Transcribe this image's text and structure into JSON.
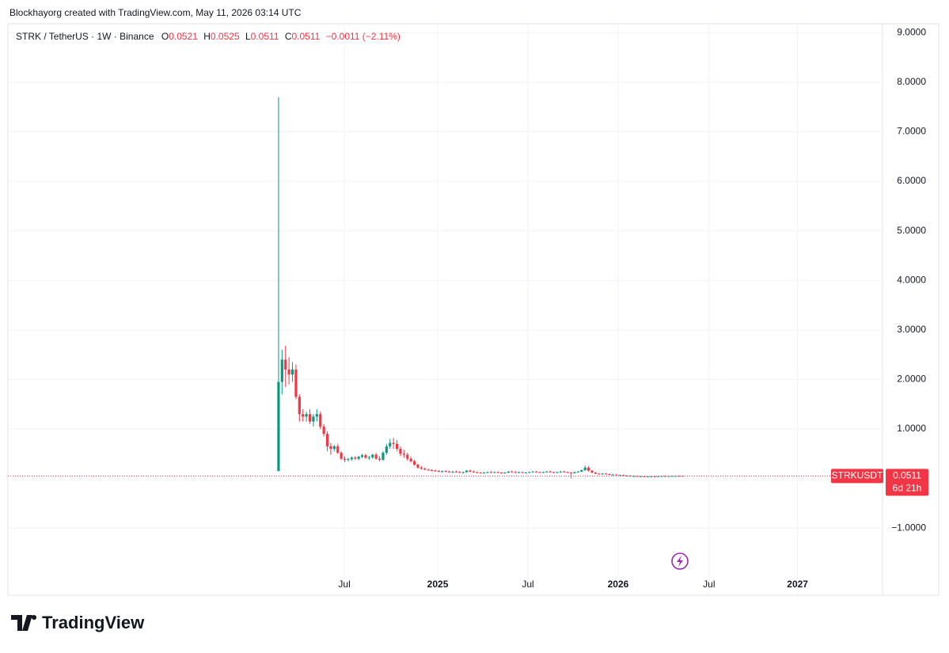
{
  "header": {
    "credit": "Blockhayorg created with TradingView.com, May 11, 2026 03:14 UTC",
    "symbol": "STRK / TetherUS · 1W · Binance",
    "o_label": "O",
    "o_value": "0.0521",
    "h_label": "H",
    "h_value": "0.0525",
    "l_label": "L",
    "l_value": "0.0511",
    "c_label": "C",
    "c_value": "0.0511",
    "change": "−0.0011 (−2.11%)"
  },
  "chart_data": {
    "type": "candlestick",
    "up_color": "#089981",
    "down_color": "#f23645",
    "grid": true,
    "ylim": [
      -2.355,
      9.18
    ],
    "xlim": [
      -77.7,
      173.4
    ],
    "yticks": [
      {
        "value": 9,
        "label": "9.0000"
      },
      {
        "value": 8,
        "label": "8.0000"
      },
      {
        "value": 7,
        "label": "7.0000"
      },
      {
        "value": 6,
        "label": "6.0000"
      },
      {
        "value": 5,
        "label": "5.0000"
      },
      {
        "value": 4,
        "label": "4.0000"
      },
      {
        "value": 3,
        "label": "3.0000"
      },
      {
        "value": 2,
        "label": "2.0000"
      },
      {
        "value": 1,
        "label": "1.0000"
      },
      {
        "value": -1,
        "label": "−1.0000"
      }
    ],
    "xticks": [
      {
        "value": 18.9,
        "label": "Jul"
      },
      {
        "value": 45.7,
        "label": "2025"
      },
      {
        "value": 71.6,
        "label": "Jul"
      },
      {
        "value": 97.5,
        "label": "2026"
      },
      {
        "value": 123.6,
        "label": "Jul"
      },
      {
        "value": 149,
        "label": "2027"
      }
    ],
    "open": [
      0.15,
      1.95,
      2.4,
      2.2,
      2.1,
      2.2,
      1.65,
      1.3,
      1.25,
      1.3,
      1.15,
      1.25,
      1.3,
      1.05,
      0.9,
      0.65,
      0.6,
      0.65,
      0.52,
      0.4,
      0.38,
      0.39,
      0.42,
      0.4,
      0.44,
      0.47,
      0.42,
      0.43,
      0.48,
      0.4,
      0.38,
      0.52,
      0.65,
      0.72,
      0.7,
      0.6,
      0.5,
      0.48,
      0.4,
      0.35,
      0.28,
      0.22,
      0.2,
      0.18,
      0.17,
      0.16,
      0.15,
      0.14,
      0.15,
      0.14,
      0.13,
      0.14,
      0.13,
      0.12,
      0.13,
      0.16,
      0.14,
      0.13,
      0.12,
      0.11,
      0.12,
      0.13,
      0.12,
      0.13,
      0.12,
      0.11,
      0.12,
      0.14,
      0.13,
      0.12,
      0.13,
      0.12,
      0.12,
      0.13,
      0.14,
      0.13,
      0.12,
      0.13,
      0.14,
      0.13,
      0.12,
      0.13,
      0.14,
      0.13,
      0.12,
      0.11,
      0.13,
      0.14,
      0.17,
      0.22,
      0.16,
      0.12,
      0.1,
      0.09,
      0.1,
      0.09,
      0.08,
      0.08,
      0.07,
      0.07,
      0.06,
      0.06,
      0.05,
      0.05,
      0.045,
      0.045,
      0.04,
      0.04,
      0.045,
      0.042,
      0.045,
      0.05,
      0.048,
      0.05,
      0.052,
      0.053,
      0.0521
    ],
    "high": [
      7.7,
      2.6,
      2.68,
      2.45,
      2.35,
      2.3,
      1.7,
      1.4,
      1.35,
      1.4,
      1.3,
      1.4,
      1.35,
      1.1,
      0.95,
      0.72,
      0.68,
      0.7,
      0.55,
      0.45,
      0.42,
      0.45,
      0.45,
      0.46,
      0.5,
      0.5,
      0.46,
      0.5,
      0.52,
      0.45,
      0.55,
      0.7,
      0.8,
      0.82,
      0.78,
      0.65,
      0.58,
      0.52,
      0.44,
      0.38,
      0.3,
      0.25,
      0.22,
      0.2,
      0.19,
      0.18,
      0.17,
      0.16,
      0.17,
      0.16,
      0.15,
      0.16,
      0.15,
      0.14,
      0.17,
      0.18,
      0.16,
      0.14,
      0.13,
      0.13,
      0.14,
      0.15,
      0.14,
      0.14,
      0.13,
      0.13,
      0.15,
      0.16,
      0.15,
      0.14,
      0.14,
      0.13,
      0.14,
      0.15,
      0.15,
      0.14,
      0.14,
      0.15,
      0.16,
      0.14,
      0.14,
      0.15,
      0.16,
      0.14,
      0.13,
      0.14,
      0.15,
      0.18,
      0.26,
      0.25,
      0.17,
      0.13,
      0.11,
      0.11,
      0.11,
      0.1,
      0.09,
      0.09,
      0.08,
      0.08,
      0.07,
      0.07,
      0.06,
      0.055,
      0.05,
      0.05,
      0.045,
      0.05,
      0.05,
      0.048,
      0.052,
      0.055,
      0.053,
      0.056,
      0.058,
      0.056,
      0.0525
    ],
    "low": [
      0.15,
      1.7,
      1.85,
      1.9,
      1.95,
      1.6,
      1.15,
      1.15,
      1.15,
      1.1,
      1.05,
      1.15,
      1.0,
      0.85,
      0.55,
      0.48,
      0.55,
      0.5,
      0.38,
      0.33,
      0.35,
      0.36,
      0.38,
      0.37,
      0.41,
      0.4,
      0.38,
      0.4,
      0.38,
      0.35,
      0.36,
      0.48,
      0.6,
      0.6,
      0.55,
      0.45,
      0.42,
      0.36,
      0.32,
      0.26,
      0.2,
      0.18,
      0.17,
      0.16,
      0.15,
      0.14,
      0.13,
      0.12,
      0.13,
      0.12,
      0.11,
      0.12,
      0.11,
      0.1,
      0.12,
      0.13,
      0.12,
      0.11,
      0.1,
      0.1,
      0.11,
      0.11,
      0.11,
      0.11,
      0.1,
      0.1,
      0.11,
      0.12,
      0.11,
      0.11,
      0.11,
      0.11,
      0.11,
      0.12,
      0.12,
      0.11,
      0.11,
      0.12,
      0.12,
      0.11,
      0.11,
      0.12,
      0.12,
      0.11,
      0.0,
      0.1,
      0.12,
      0.13,
      0.15,
      0.14,
      0.11,
      0.09,
      0.08,
      0.08,
      0.08,
      0.07,
      0.07,
      0.07,
      0.06,
      0.06,
      0.05,
      0.05,
      0.045,
      0.04,
      0.04,
      0.04,
      0.035,
      0.035,
      0.04,
      0.038,
      0.04,
      0.045,
      0.044,
      0.046,
      0.048,
      0.05,
      0.0511
    ],
    "close": [
      1.95,
      2.4,
      2.2,
      2.1,
      2.2,
      1.65,
      1.3,
      1.25,
      1.3,
      1.15,
      1.25,
      1.3,
      1.05,
      0.9,
      0.65,
      0.6,
      0.65,
      0.52,
      0.4,
      0.38,
      0.39,
      0.42,
      0.4,
      0.44,
      0.47,
      0.42,
      0.43,
      0.48,
      0.4,
      0.38,
      0.52,
      0.65,
      0.72,
      0.7,
      0.6,
      0.5,
      0.48,
      0.4,
      0.35,
      0.28,
      0.22,
      0.2,
      0.18,
      0.17,
      0.16,
      0.15,
      0.14,
      0.15,
      0.14,
      0.13,
      0.14,
      0.13,
      0.12,
      0.13,
      0.16,
      0.14,
      0.13,
      0.12,
      0.11,
      0.12,
      0.13,
      0.12,
      0.13,
      0.12,
      0.11,
      0.12,
      0.14,
      0.13,
      0.12,
      0.13,
      0.12,
      0.12,
      0.13,
      0.14,
      0.13,
      0.12,
      0.13,
      0.14,
      0.13,
      0.12,
      0.13,
      0.14,
      0.13,
      0.12,
      0.11,
      0.13,
      0.14,
      0.17,
      0.22,
      0.16,
      0.12,
      0.1,
      0.09,
      0.1,
      0.09,
      0.08,
      0.08,
      0.07,
      0.07,
      0.06,
      0.06,
      0.05,
      0.05,
      0.045,
      0.045,
      0.04,
      0.04,
      0.045,
      0.042,
      0.045,
      0.05,
      0.048,
      0.05,
      0.052,
      0.053,
      0.052,
      0.0511
    ],
    "last_price": {
      "symbol": "STRKUSDT",
      "value": 0.0511,
      "label": "0.0511",
      "countdown": "6d 21h",
      "color": "#f23645"
    }
  },
  "footer": {
    "brand": "TradingView"
  }
}
